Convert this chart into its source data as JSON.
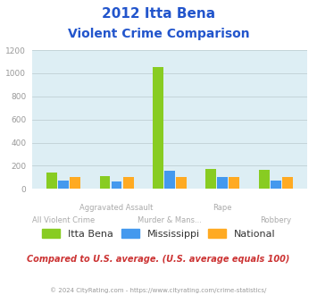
{
  "title_line1": "2012 Itta Bena",
  "title_line2": "Violent Crime Comparison",
  "categories": [
    "All Violent Crime",
    "Aggravated Assault",
    "Murder & Mans...",
    "Rape",
    "Robbery"
  ],
  "top_labels": [
    "",
    "Aggravated Assault",
    "",
    "Rape",
    ""
  ],
  "bot_labels": [
    "All Violent Crime",
    "",
    "Murder & Mans...",
    "",
    "Robbery"
  ],
  "itta_bena": [
    140,
    110,
    1050,
    175,
    165
  ],
  "mississippi": [
    75,
    65,
    155,
    105,
    75
  ],
  "national": [
    100,
    100,
    100,
    100,
    100
  ],
  "colors": {
    "itta_bena": "#88cc22",
    "mississippi": "#4499ee",
    "national": "#ffaa22"
  },
  "ylim": [
    0,
    1200
  ],
  "yticks": [
    0,
    200,
    400,
    600,
    800,
    1000,
    1200
  ],
  "bg_color": "#ddeef4",
  "grid_color": "#c0cfd4",
  "title_color": "#2255cc",
  "xlabel_color": "#aaaaaa",
  "footer_text": "© 2024 CityRating.com - https://www.cityrating.com/crime-statistics/",
  "compare_text": "Compared to U.S. average. (U.S. average equals 100)",
  "legend_labels": [
    "Itta Bena",
    "Mississippi",
    "National"
  ],
  "bar_width": 0.2,
  "bar_gap": 0.02
}
